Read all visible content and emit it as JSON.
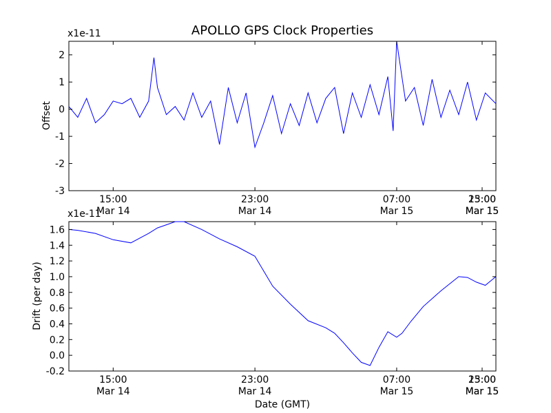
{
  "figure_title": "APOLLO GPS Clock Properties",
  "chart_data": [
    {
      "type": "line",
      "ylabel": "Offset",
      "multiplier": "x1e-11",
      "ylim": [
        -3,
        2.5
      ],
      "yticks": [
        "-3",
        "-2",
        "-1",
        "0",
        "1",
        "2"
      ],
      "xrange_hours": [
        12.5,
        36.6
      ],
      "xticks": [
        {
          "t": 15,
          "top": "15:00",
          "bottom": "Mar 14"
        },
        {
          "t": 23,
          "top": "23:00",
          "bottom": "Mar 14"
        },
        {
          "t": 31,
          "top": "07:00",
          "bottom": "Mar 15"
        },
        {
          "t": 39,
          "top": "15:00",
          "bottom": "Mar 15"
        },
        {
          "t": 47,
          "top": "23:00",
          "bottom": "Mar 15"
        }
      ],
      "line_color": "#0000ff",
      "series": [
        {
          "x": [
            12.5,
            13.0,
            13.5,
            14.0,
            14.5,
            15.0,
            15.5,
            16.0,
            16.5,
            17.0,
            17.3,
            17.5,
            18.0,
            18.5,
            19.0,
            19.5,
            20.0,
            20.5,
            21.0,
            21.5,
            22.0,
            22.5,
            23.0,
            23.5,
            24.0,
            24.5,
            25.0,
            25.5,
            26.0,
            26.5,
            27.0,
            27.5,
            28.0,
            28.5,
            29.0,
            29.5,
            30.0,
            30.5,
            30.8,
            31.0,
            31.5,
            32.0,
            32.5,
            33.0,
            33.5,
            34.0,
            34.5,
            35.0,
            35.5,
            36.0,
            36.6
          ],
          "y": [
            0.1,
            -0.3,
            0.4,
            -0.5,
            -0.2,
            0.3,
            0.2,
            0.4,
            -0.3,
            0.3,
            1.9,
            0.8,
            -0.2,
            0.1,
            -0.4,
            0.6,
            -0.3,
            0.3,
            -1.3,
            0.8,
            -0.5,
            0.6,
            -1.4,
            -0.5,
            0.5,
            -0.9,
            0.2,
            -0.6,
            0.6,
            -0.5,
            0.4,
            0.8,
            -0.9,
            0.6,
            -0.3,
            0.9,
            -0.2,
            1.2,
            -0.8,
            2.5,
            0.3,
            0.8,
            -0.6,
            1.1,
            -0.3,
            0.7,
            -0.2,
            1.0,
            -0.4,
            0.6,
            0.2
          ]
        }
      ]
    },
    {
      "type": "line",
      "ylabel": "Drift (per day)",
      "xlabel": "Date (GMT)",
      "multiplier": "x1e-11",
      "ylim": [
        -0.2,
        1.7
      ],
      "yticks": [
        "-0.2",
        "0.0",
        "0.2",
        "0.4",
        "0.6",
        "0.8",
        "1.0",
        "1.2",
        "1.4",
        "1.6"
      ],
      "xrange_hours": [
        12.5,
        36.6
      ],
      "xticks": [
        {
          "t": 15,
          "top": "15:00",
          "bottom": "Mar 14"
        },
        {
          "t": 23,
          "top": "23:00",
          "bottom": "Mar 14"
        },
        {
          "t": 31,
          "top": "07:00",
          "bottom": "Mar 15"
        },
        {
          "t": 39,
          "top": "15:00",
          "bottom": "Mar 15"
        },
        {
          "t": 47,
          "top": "23:00",
          "bottom": "Mar 15"
        }
      ],
      "line_color": "#0000ff",
      "series": [
        {
          "x": [
            12.5,
            13.0,
            14.0,
            15.0,
            16.0,
            17.0,
            17.5,
            18.0,
            18.5,
            19.0,
            20.0,
            21.0,
            22.0,
            23.0,
            24.0,
            25.0,
            26.0,
            27.0,
            27.5,
            28.0,
            28.5,
            29.0,
            29.5,
            30.0,
            30.5,
            31.0,
            31.3,
            31.8,
            32.5,
            33.5,
            34.5,
            35.0,
            35.5,
            36.0,
            36.6
          ],
          "y": [
            1.6,
            1.59,
            1.55,
            1.47,
            1.43,
            1.55,
            1.62,
            1.66,
            1.7,
            1.7,
            1.6,
            1.48,
            1.38,
            1.26,
            0.88,
            0.65,
            0.44,
            0.35,
            0.28,
            0.16,
            0.03,
            -0.09,
            -0.13,
            0.1,
            0.3,
            0.23,
            0.28,
            0.43,
            0.62,
            0.82,
            1.0,
            0.99,
            0.93,
            0.89,
            1.0
          ]
        }
      ]
    }
  ]
}
